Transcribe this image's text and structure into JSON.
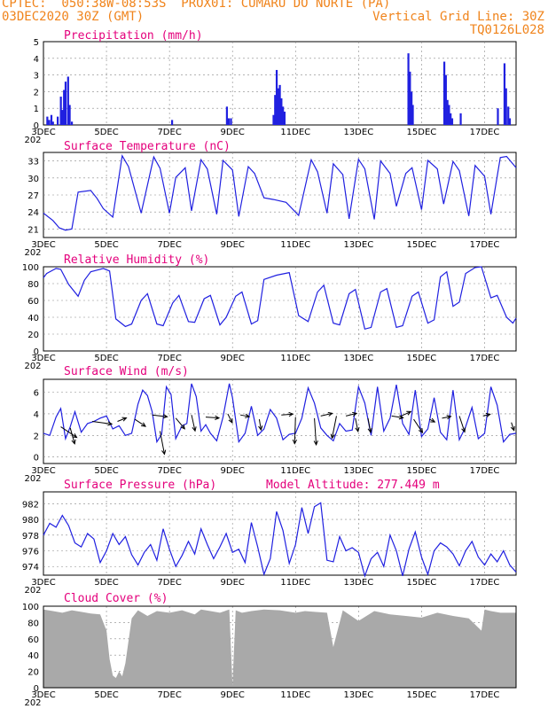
{
  "header": {
    "line1": "CPTEC:  050:38W-08:53S  PROX01: CUMARU DO NORTE (PA)",
    "line2_left": "03DEC2020 30Z (GMT)",
    "line2_right": "Vertical Grid Line: 30Z",
    "line3_right": "TQ0126L028"
  },
  "colors": {
    "header": "#f0841c",
    "title": "#e4007c",
    "line": "#2020e0",
    "cloud": "#a9a9a9"
  },
  "x_ticks": [
    "3DEC",
    "5DEC",
    "7DEC",
    "9DEC",
    "11DEC",
    "13DEC",
    "15DEC",
    "17DEC"
  ],
  "year_stub": "202",
  "chart_data": [
    {
      "type": "bar",
      "title": "Precipitation (mm/h)",
      "x_unit": "day offset from 3DEC 00Z",
      "ylim": [
        0,
        5
      ],
      "yticks": [
        0,
        1,
        2,
        3,
        4,
        5
      ],
      "points": [
        [
          0.12,
          0.5
        ],
        [
          0.18,
          0.3
        ],
        [
          0.25,
          0.6
        ],
        [
          0.3,
          0.2
        ],
        [
          0.45,
          0.5
        ],
        [
          0.55,
          1.7
        ],
        [
          0.6,
          0.9
        ],
        [
          0.65,
          2.1
        ],
        [
          0.7,
          2.6
        ],
        [
          0.78,
          2.9
        ],
        [
          0.83,
          1.2
        ],
        [
          0.9,
          0.2
        ],
        [
          4.08,
          0.3
        ],
        [
          5.82,
          1.1
        ],
        [
          5.88,
          0.4
        ],
        [
          5.95,
          0.4
        ],
        [
          7.3,
          0.6
        ],
        [
          7.35,
          1.8
        ],
        [
          7.4,
          3.3
        ],
        [
          7.45,
          2.2
        ],
        [
          7.5,
          2.4
        ],
        [
          7.55,
          1.6
        ],
        [
          7.6,
          1.1
        ],
        [
          7.65,
          0.8
        ],
        [
          11.58,
          4.3
        ],
        [
          11.63,
          3.2
        ],
        [
          11.68,
          2.0
        ],
        [
          11.72,
          1.2
        ],
        [
          12.72,
          3.8
        ],
        [
          12.77,
          3.0
        ],
        [
          12.82,
          1.5
        ],
        [
          12.87,
          1.2
        ],
        [
          12.92,
          0.7
        ],
        [
          12.97,
          0.4
        ],
        [
          13.24,
          0.7
        ],
        [
          14.42,
          1.0
        ],
        [
          14.63,
          3.7
        ],
        [
          14.68,
          2.2
        ],
        [
          14.75,
          1.1
        ],
        [
          14.8,
          0.4
        ]
      ]
    },
    {
      "type": "line",
      "title": "Surface Temperature (nC)",
      "ylim": [
        19.5,
        34.5
      ],
      "yticks": [
        21,
        24,
        27,
        30,
        33
      ],
      "x": [
        0,
        0.3,
        0.5,
        0.7,
        0.9,
        1.1,
        1.5,
        1.7,
        1.9,
        2.2,
        2.5,
        2.7,
        3.1,
        3.5,
        3.7,
        4.0,
        4.2,
        4.5,
        4.7,
        5.0,
        5.2,
        5.5,
        5.7,
        6.0,
        6.2,
        6.5,
        6.7,
        7.0,
        7.3,
        7.7,
        8.1,
        8.5,
        8.7,
        9.0,
        9.2,
        9.5,
        9.7,
        10.0,
        10.2,
        10.5,
        10.7,
        11.0,
        11.2,
        11.5,
        11.7,
        12.0,
        12.2,
        12.5,
        12.7,
        13.0,
        13.2,
        13.5,
        13.7,
        14.0,
        14.2,
        14.5,
        14.7,
        15.0
      ],
      "values": [
        23.8,
        22.5,
        21.2,
        20.8,
        21.0,
        27.5,
        27.8,
        26.4,
        24.6,
        23.1,
        33.9,
        32.0,
        23.8,
        33.7,
        31.7,
        23.8,
        30.1,
        31.8,
        24.2,
        33.2,
        31.6,
        23.6,
        33.1,
        31.4,
        23.2,
        32.0,
        30.8,
        26.5,
        26.2,
        25.7,
        23.4,
        33.2,
        31.1,
        23.8,
        32.5,
        30.6,
        22.8,
        33.3,
        31.6,
        22.7,
        33.0,
        30.8,
        25.0,
        30.8,
        31.8,
        24.4,
        33.1,
        31.6,
        25.4,
        32.9,
        31.3,
        23.3,
        32.2,
        30.3,
        23.6,
        33.6,
        33.8,
        31.8
      ]
    },
    {
      "type": "line",
      "title": "Relative Humidity (%)",
      "ylim": [
        0,
        100
      ],
      "yticks": [
        0,
        20,
        40,
        60,
        80,
        100
      ],
      "x": [
        0,
        0.1,
        0.4,
        0.55,
        0.8,
        1.1,
        1.3,
        1.5,
        1.7,
        1.9,
        2.1,
        2.3,
        2.6,
        2.8,
        3.1,
        3.3,
        3.6,
        3.8,
        4.1,
        4.3,
        4.6,
        4.8,
        5.1,
        5.3,
        5.6,
        5.8,
        6.1,
        6.3,
        6.6,
        6.8,
        7.0,
        7.4,
        7.8,
        8.1,
        8.4,
        8.7,
        8.9,
        9.2,
        9.4,
        9.7,
        9.9,
        10.2,
        10.4,
        10.7,
        10.9,
        11.2,
        11.4,
        11.7,
        11.9,
        12.2,
        12.4,
        12.6,
        12.8,
        13.0,
        13.2,
        13.4,
        13.7,
        13.9,
        14.2,
        14.4,
        14.7,
        14.9,
        15.0
      ],
      "values": [
        87,
        92,
        98,
        97,
        79,
        65,
        84,
        94,
        96,
        98,
        95,
        38,
        29,
        32,
        60,
        68,
        32,
        30,
        57,
        66,
        35,
        34,
        62,
        66,
        31,
        40,
        65,
        70,
        32,
        36,
        85,
        90,
        93,
        42,
        35,
        70,
        78,
        33,
        31,
        68,
        73,
        26,
        28,
        70,
        74,
        28,
        30,
        65,
        70,
        33,
        37,
        88,
        94,
        53,
        58,
        92,
        99,
        100,
        63,
        66,
        40,
        33,
        39
      ]
    },
    {
      "type": "line",
      "title": "Surface Wind (m/s)",
      "ylim": [
        -0.6,
        7.2
      ],
      "yticks": [
        0,
        2,
        4,
        6
      ],
      "x": [
        0,
        0.2,
        0.4,
        0.55,
        0.7,
        0.85,
        1.0,
        1.2,
        1.4,
        1.6,
        1.8,
        2.0,
        2.2,
        2.4,
        2.6,
        2.8,
        3.0,
        3.15,
        3.3,
        3.45,
        3.6,
        3.75,
        3.9,
        4.05,
        4.2,
        4.4,
        4.55,
        4.7,
        4.85,
        5.0,
        5.15,
        5.3,
        5.5,
        5.7,
        5.9,
        6.0,
        6.2,
        6.4,
        6.6,
        6.8,
        7.0,
        7.2,
        7.4,
        7.6,
        7.8,
        8.0,
        8.2,
        8.4,
        8.6,
        8.8,
        9.0,
        9.2,
        9.4,
        9.6,
        9.8,
        10.0,
        10.2,
        10.4,
        10.6,
        10.8,
        11.0,
        11.2,
        11.4,
        11.6,
        11.8,
        12.0,
        12.2,
        12.4,
        12.6,
        12.8,
        13.0,
        13.2,
        13.4,
        13.6,
        13.8,
        14.0,
        14.2,
        14.4,
        14.6,
        14.8,
        15.0
      ],
      "values": [
        2.2,
        2.0,
        3.7,
        4.5,
        1.7,
        2.8,
        4.2,
        2.3,
        3.1,
        3.3,
        3.6,
        3.8,
        2.6,
        2.9,
        2.0,
        2.2,
        4.9,
        6.2,
        5.7,
        4.2,
        1.4,
        2.1,
        6.5,
        5.8,
        1.7,
        2.9,
        3.1,
        6.8,
        5.6,
        2.4,
        3.0,
        2.2,
        1.5,
        3.7,
        6.8,
        5.5,
        1.4,
        2.2,
        4.7,
        2.0,
        2.6,
        4.4,
        3.6,
        1.6,
        2.1,
        2.2,
        3.6,
        6.4,
        5.0,
        2.7,
        2.0,
        1.5,
        3.1,
        2.4,
        2.5,
        6.5,
        5.0,
        2.0,
        6.5,
        2.4,
        3.6,
        6.7,
        3.1,
        2.1,
        6.2,
        1.9,
        2.6,
        5.5,
        2.3,
        1.6,
        6.2,
        1.6,
        2.8,
        4.6,
        1.7,
        2.2,
        6.5,
        4.8,
        1.4,
        2.1,
        2.2
      ],
      "vectors": [
        [
          0.55,
          2.8,
          1.8,
          -1.2
        ],
        [
          0.85,
          2.7,
          0.5,
          -1.8
        ],
        [
          1.55,
          3.3,
          2.2,
          -0.3
        ],
        [
          2.35,
          3.3,
          1.0,
          0.4
        ],
        [
          2.9,
          3.5,
          1.2,
          -0.8
        ],
        [
          3.45,
          3.9,
          1.7,
          -0.2
        ],
        [
          3.7,
          2.4,
          0.5,
          -2.6
        ],
        [
          4.2,
          3.6,
          1.0,
          -1.2
        ],
        [
          4.7,
          3.9,
          0.4,
          -1.8
        ],
        [
          5.15,
          3.7,
          1.5,
          -0.1
        ],
        [
          5.85,
          4.0,
          0.5,
          -1.0
        ],
        [
          6.25,
          3.9,
          1.0,
          -0.2
        ],
        [
          6.85,
          3.5,
          0.2,
          -1.2
        ],
        [
          7.55,
          3.9,
          1.3,
          0.1
        ],
        [
          8.0,
          3.7,
          -0.1,
          -3.0
        ],
        [
          8.6,
          3.6,
          0.2,
          -3.0
        ],
        [
          8.8,
          3.8,
          1.3,
          0.3
        ],
        [
          9.3,
          3.8,
          -0.5,
          -2.5
        ],
        [
          9.6,
          3.8,
          1.2,
          0.3
        ],
        [
          9.9,
          3.6,
          0.3,
          -1.5
        ],
        [
          10.3,
          3.6,
          0.3,
          -1.6
        ],
        [
          11.05,
          3.8,
          1.3,
          -0.2
        ],
        [
          11.35,
          3.8,
          1.1,
          0.5
        ],
        [
          11.75,
          3.5,
          1.0,
          -1.5
        ],
        [
          12.25,
          3.5,
          0.6,
          -0.3
        ],
        [
          12.65,
          3.6,
          1.0,
          0.2
        ],
        [
          13.2,
          3.8,
          0.6,
          -1.8
        ],
        [
          13.95,
          3.8,
          0.8,
          0.2
        ],
        [
          14.85,
          3.2,
          0.3,
          -0.9
        ]
      ]
    },
    {
      "type": "line",
      "title": "Surface Pressure (hPa)",
      "annotation": "Model Altitude: 277.449 m",
      "ylim": [
        972.9,
        983.5
      ],
      "yticks": [
        974,
        976,
        978,
        980,
        982
      ],
      "x": [
        0,
        0.2,
        0.4,
        0.6,
        0.8,
        1.0,
        1.2,
        1.4,
        1.6,
        1.8,
        2.0,
        2.2,
        2.4,
        2.6,
        2.8,
        3.0,
        3.2,
        3.4,
        3.6,
        3.8,
        4.0,
        4.2,
        4.4,
        4.6,
        4.8,
        5.0,
        5.2,
        5.4,
        5.6,
        5.8,
        6.0,
        6.2,
        6.4,
        6.6,
        6.8,
        7.0,
        7.2,
        7.4,
        7.6,
        7.8,
        8.0,
        8.2,
        8.4,
        8.6,
        8.8,
        9.0,
        9.2,
        9.4,
        9.6,
        9.8,
        10.0,
        10.2,
        10.4,
        10.6,
        10.8,
        11.0,
        11.2,
        11.4,
        11.6,
        11.8,
        12.0,
        12.2,
        12.4,
        12.6,
        12.8,
        13.0,
        13.2,
        13.4,
        13.6,
        13.8,
        14.0,
        14.2,
        14.4,
        14.6,
        14.8,
        15.0
      ],
      "values": [
        978.0,
        979.5,
        979.0,
        980.5,
        979.2,
        977.0,
        976.5,
        978.2,
        977.5,
        974.5,
        976.0,
        978.2,
        976.8,
        977.8,
        975.5,
        974.2,
        975.8,
        976.8,
        974.8,
        978.8,
        976.2,
        974.0,
        975.4,
        977.2,
        975.6,
        978.8,
        976.8,
        975.0,
        976.5,
        978.2,
        975.8,
        976.2,
        974.5,
        979.6,
        976.5,
        973.0,
        975.0,
        981.0,
        978.6,
        974.4,
        976.8,
        981.5,
        978.2,
        981.6,
        982.1,
        974.8,
        974.6,
        977.8,
        976.0,
        976.4,
        975.8,
        972.8,
        975.0,
        975.8,
        974.0,
        978.0,
        976.0,
        972.8,
        976.2,
        978.4,
        975.2,
        973.0,
        976.0,
        977.0,
        976.5,
        975.6,
        974.1,
        976.0,
        977.2,
        975.2,
        974.2,
        975.6,
        974.6,
        976.0,
        974.2,
        973.3
      ]
    },
    {
      "type": "area",
      "title": "Cloud Cover (%)",
      "ylim": [
        0,
        100
      ],
      "yticks": [
        0,
        20,
        40,
        60,
        80,
        100
      ],
      "x": [
        0,
        0.3,
        0.6,
        0.9,
        1.2,
        1.5,
        1.8,
        2.0,
        2.1,
        2.2,
        2.3,
        2.4,
        2.5,
        2.6,
        2.8,
        3.0,
        3.3,
        3.6,
        4.0,
        4.4,
        4.8,
        5.0,
        5.3,
        5.6,
        5.9,
        6.0,
        6.1,
        6.3,
        6.6,
        7.0,
        7.5,
        8.0,
        8.3,
        8.6,
        9.0,
        9.2,
        9.5,
        10.0,
        10.5,
        11.0,
        11.5,
        12.0,
        12.5,
        13.0,
        13.5,
        13.9,
        14.0,
        14.2,
        14.5,
        15.0
      ],
      "values": [
        96,
        94,
        92,
        95,
        93,
        91,
        90,
        70,
        35,
        15,
        12,
        20,
        14,
        30,
        85,
        95,
        88,
        94,
        92,
        95,
        90,
        96,
        94,
        92,
        96,
        3,
        95,
        92,
        94,
        96,
        95,
        92,
        94,
        93,
        92,
        50,
        95,
        82,
        94,
        90,
        88,
        86,
        92,
        88,
        85,
        70,
        96,
        94,
        92,
        92
      ]
    }
  ]
}
